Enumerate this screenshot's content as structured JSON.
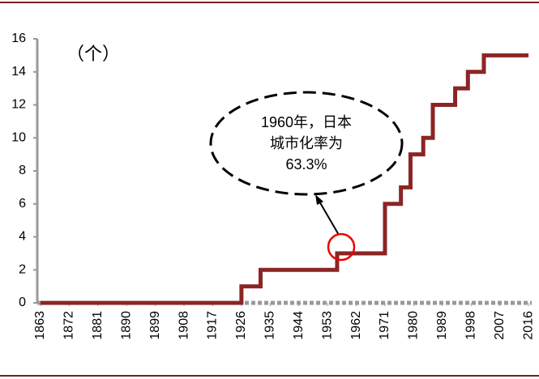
{
  "chart_data": {
    "type": "line",
    "step": true,
    "unit_label": "（个）",
    "annotation": [
      "1960年，日本",
      "城市化率为",
      "63.3%"
    ],
    "x": [
      1863,
      1926,
      1932,
      1956,
      1971,
      1976,
      1979,
      1983,
      1986,
      1993,
      1997,
      2002,
      2016
    ],
    "values": [
      0,
      1,
      2,
      3,
      6,
      7,
      9,
      10,
      12,
      13,
      14,
      15,
      15
    ],
    "color": "#8b2525",
    "xlim": [
      1862,
      2017
    ],
    "xticks": [
      1863,
      1872,
      1881,
      1890,
      1899,
      1908,
      1917,
      1926,
      1935,
      1944,
      1953,
      1962,
      1971,
      1980,
      1989,
      1998,
      2007,
      2016
    ],
    "ylim": [
      0,
      16
    ],
    "yticks": [
      0,
      2,
      4,
      6,
      8,
      10,
      12,
      14,
      16
    ],
    "grid": false
  }
}
